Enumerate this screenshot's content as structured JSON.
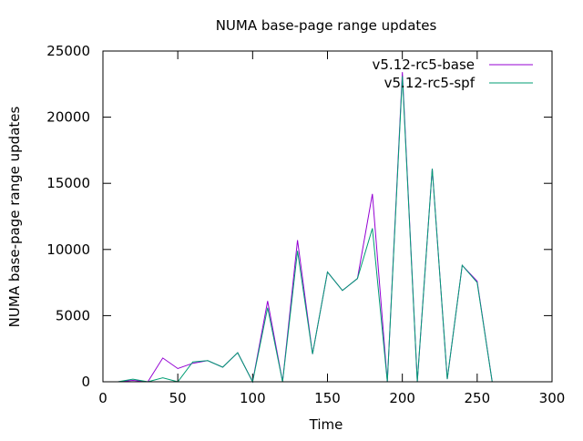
{
  "chart_data": {
    "type": "line",
    "title": "NUMA base-page range updates",
    "xlabel": "Time",
    "ylabel": "NUMA base-page range updates",
    "xlim": [
      0,
      300
    ],
    "ylim": [
      0,
      25000
    ],
    "x_ticks": [
      0,
      50,
      100,
      150,
      200,
      250,
      300
    ],
    "y_ticks": [
      0,
      5000,
      10000,
      15000,
      20000,
      25000
    ],
    "grid": false,
    "legend_position": "top-right",
    "series": [
      {
        "name": "v5.12-rc5-base",
        "color": "#9400d3",
        "x": [
          10,
          20,
          30,
          40,
          50,
          60,
          70,
          80,
          90,
          100,
          110,
          120,
          130,
          140,
          150,
          160,
          170,
          180,
          190,
          200,
          210,
          220,
          230,
          240,
          250,
          260
        ],
        "y": [
          0,
          100,
          0,
          1800,
          1000,
          1400,
          1600,
          1100,
          2200,
          0,
          6100,
          0,
          10700,
          2100,
          8300,
          6900,
          7800,
          14200,
          0,
          23400,
          0,
          16100,
          200,
          8800,
          7600,
          0
        ]
      },
      {
        "name": "v5.12-rc5-spf",
        "color": "#009e73",
        "x": [
          10,
          20,
          30,
          40,
          50,
          60,
          70,
          80,
          90,
          100,
          110,
          120,
          130,
          140,
          150,
          160,
          170,
          180,
          190,
          200,
          210,
          220,
          230,
          240,
          250,
          260
        ],
        "y": [
          0,
          200,
          0,
          300,
          0,
          1500,
          1600,
          1100,
          2200,
          0,
          5600,
          0,
          9900,
          2100,
          8300,
          6900,
          7800,
          11600,
          0,
          23100,
          0,
          16100,
          200,
          8800,
          7500,
          0
        ]
      }
    ]
  }
}
